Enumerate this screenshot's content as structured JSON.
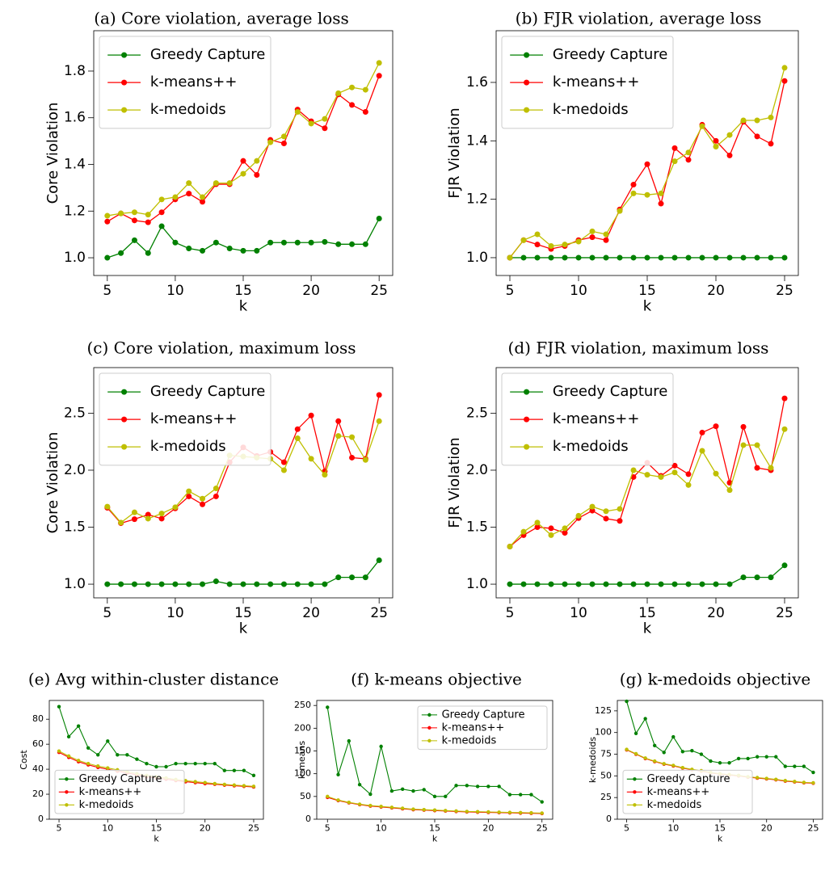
{
  "chart_data": [
    {
      "type": "line",
      "title": "(a) Core violation, average loss",
      "xlabel": "k",
      "ylabel": "Core Violation",
      "x": [
        5,
        6,
        7,
        8,
        9,
        10,
        11,
        12,
        13,
        14,
        15,
        16,
        17,
        18,
        19,
        20,
        21,
        22,
        23,
        24,
        25
      ],
      "xlim": [
        4,
        26
      ],
      "xticks": [
        5,
        10,
        15,
        20,
        25
      ],
      "ylim": [
        0.924,
        1.973
      ],
      "yticks": [
        {
          "value": 1.0,
          "label": "1.0"
        },
        1.2,
        1.4,
        1.6,
        1.8
      ],
      "legend": "upper left",
      "series": [
        {
          "name": "Greedy Capture",
          "color": "#008000",
          "values": [
            1.0,
            1.02,
            1.075,
            1.02,
            1.135,
            1.065,
            1.04,
            1.03,
            1.065,
            1.04,
            1.03,
            1.03,
            1.065,
            1.065,
            1.065,
            1.065,
            1.068,
            1.058,
            1.058,
            1.058,
            1.168
          ]
        },
        {
          "name": "k-means++",
          "color": "#ff0000",
          "values": [
            1.155,
            1.19,
            1.16,
            1.152,
            1.195,
            1.25,
            1.275,
            1.24,
            1.315,
            1.315,
            1.415,
            1.355,
            1.505,
            1.49,
            1.635,
            1.585,
            1.555,
            1.7,
            1.655,
            1.625,
            1.78
          ]
        },
        {
          "name": "k-medoids",
          "color": "#bfbf00",
          "values": [
            1.18,
            1.19,
            1.195,
            1.185,
            1.25,
            1.26,
            1.32,
            1.26,
            1.32,
            1.32,
            1.36,
            1.415,
            1.495,
            1.52,
            1.625,
            1.575,
            1.595,
            1.705,
            1.73,
            1.72,
            1.835
          ]
        }
      ]
    },
    {
      "type": "line",
      "title": "(b) FJR violation, average loss",
      "xlabel": "k",
      "ylabel": "FJR Violation",
      "x": [
        5,
        6,
        7,
        8,
        9,
        10,
        11,
        12,
        13,
        14,
        15,
        16,
        17,
        18,
        19,
        20,
        21,
        22,
        23,
        24,
        25
      ],
      "xlim": [
        4,
        26
      ],
      "xticks": [
        5,
        10,
        15,
        20,
        25
      ],
      "ylim": [
        0.939,
        1.777
      ],
      "yticks": [
        {
          "value": 1.0,
          "label": "1.0"
        },
        1.2,
        1.4,
        1.6
      ],
      "legend": "upper left",
      "series": [
        {
          "name": "Greedy Capture",
          "color": "#008000",
          "values": [
            1.0,
            1.0,
            1.0,
            1.0,
            1.0,
            1.0,
            1.0,
            1.0,
            1.0,
            1.0,
            1.0,
            1.0,
            1.0,
            1.0,
            1.0,
            1.0,
            1.0,
            1.0,
            1.0,
            1.0,
            1.0
          ]
        },
        {
          "name": "k-means++",
          "color": "#ff0000",
          "values": [
            1.0,
            1.06,
            1.045,
            1.03,
            1.04,
            1.06,
            1.07,
            1.06,
            1.165,
            1.25,
            1.32,
            1.185,
            1.375,
            1.335,
            1.455,
            1.4,
            1.35,
            1.465,
            1.415,
            1.39,
            1.605
          ]
        },
        {
          "name": "k-medoids",
          "color": "#bfbf00",
          "values": [
            1.0,
            1.06,
            1.08,
            1.04,
            1.045,
            1.055,
            1.09,
            1.08,
            1.16,
            1.22,
            1.215,
            1.22,
            1.33,
            1.36,
            1.45,
            1.38,
            1.42,
            1.47,
            1.47,
            1.48,
            1.65
          ]
        }
      ]
    },
    {
      "type": "line",
      "title": "(c) Core violation, maximum loss",
      "xlabel": "k",
      "ylabel": "Core Violation",
      "x": [
        5,
        6,
        7,
        8,
        9,
        10,
        11,
        12,
        13,
        14,
        15,
        16,
        17,
        18,
        19,
        20,
        21,
        22,
        23,
        24,
        25
      ],
      "xlim": [
        4,
        26
      ],
      "xticks": [
        5,
        10,
        15,
        20,
        25
      ],
      "ylim": [
        0.88,
        2.9
      ],
      "yticks": [
        {
          "value": 1.0,
          "label": "1.0"
        },
        1.5,
        {
          "value": 2.0,
          "label": "2.0"
        },
        2.5
      ],
      "legend": "upper left",
      "series": [
        {
          "name": "Greedy Capture",
          "color": "#008000",
          "values": [
            1.0,
            1.0,
            1.0,
            1.0,
            1.0,
            1.0,
            1.0,
            1.0,
            1.025,
            1.0,
            1.0,
            1.0,
            1.0,
            1.0,
            1.0,
            1.0,
            1.0,
            1.06,
            1.06,
            1.06,
            1.21
          ]
        },
        {
          "name": "k-means++",
          "color": "#ff0000",
          "values": [
            1.67,
            1.535,
            1.57,
            1.61,
            1.575,
            1.665,
            1.77,
            1.7,
            1.77,
            2.07,
            2.2,
            2.125,
            2.16,
            2.07,
            2.36,
            2.48,
            1.99,
            2.43,
            2.11,
            2.1,
            2.66
          ]
        },
        {
          "name": "k-medoids",
          "color": "#bfbf00",
          "values": [
            1.68,
            1.54,
            1.63,
            1.575,
            1.62,
            1.675,
            1.815,
            1.75,
            1.84,
            2.13,
            2.12,
            2.11,
            2.1,
            2.0,
            2.28,
            2.1,
            1.96,
            2.3,
            2.29,
            2.09,
            2.43
          ]
        }
      ]
    },
    {
      "type": "line",
      "title": "(d) FJR violation, maximum loss",
      "xlabel": "k",
      "ylabel": "FJR Violation",
      "x": [
        5,
        6,
        7,
        8,
        9,
        10,
        11,
        12,
        13,
        14,
        15,
        16,
        17,
        18,
        19,
        20,
        21,
        22,
        23,
        24,
        25
      ],
      "xlim": [
        4,
        26
      ],
      "xticks": [
        5,
        10,
        15,
        20,
        25
      ],
      "ylim": [
        0.88,
        2.9
      ],
      "yticks": [
        {
          "value": 1.0,
          "label": "1.0"
        },
        1.5,
        {
          "value": 2.0,
          "label": "2.0"
        },
        2.5
      ],
      "legend": "upper left",
      "series": [
        {
          "name": "Greedy Capture",
          "color": "#008000",
          "values": [
            1.0,
            1.0,
            1.0,
            1.0,
            1.0,
            1.0,
            1.0,
            1.0,
            1.0,
            1.0,
            1.0,
            1.0,
            1.0,
            1.0,
            1.0,
            1.0,
            1.0,
            1.06,
            1.06,
            1.06,
            1.165
          ]
        },
        {
          "name": "k-means++",
          "color": "#ff0000",
          "values": [
            1.33,
            1.43,
            1.5,
            1.49,
            1.45,
            1.58,
            1.645,
            1.575,
            1.555,
            1.94,
            2.065,
            1.95,
            2.04,
            1.965,
            2.33,
            2.385,
            1.89,
            2.38,
            2.02,
            2.0,
            2.63
          ]
        },
        {
          "name": "k-medoids",
          "color": "#bfbf00",
          "values": [
            1.33,
            1.46,
            1.54,
            1.43,
            1.49,
            1.6,
            1.68,
            1.64,
            1.66,
            2.0,
            1.96,
            1.94,
            1.98,
            1.87,
            2.17,
            1.97,
            1.825,
            2.22,
            2.22,
            2.02,
            2.36
          ]
        }
      ]
    },
    {
      "type": "line",
      "title": "(e) Avg within-cluster distance",
      "xlabel": "k",
      "ylabel": "Cost",
      "x": [
        5,
        6,
        7,
        8,
        9,
        10,
        11,
        12,
        13,
        14,
        15,
        16,
        17,
        18,
        19,
        20,
        21,
        22,
        23,
        24,
        25
      ],
      "xlim": [
        4,
        26
      ],
      "xticks": [
        5,
        10,
        15,
        20,
        25
      ],
      "ylim": [
        0,
        95
      ],
      "yticks": [
        0,
        20,
        40,
        60,
        80
      ],
      "legend": "lower left",
      "series": [
        {
          "name": "Greedy Capture",
          "color": "#008000",
          "values": [
            90,
            66,
            74.5,
            57,
            51.5,
            62.5,
            51.5,
            51.5,
            48,
            44.5,
            42,
            42,
            44.5,
            44.5,
            44.5,
            44.5,
            44.5,
            39,
            39,
            39,
            35
          ]
        },
        {
          "name": "k-means++",
          "color": "#ff0000",
          "values": [
            53.5,
            49.5,
            46,
            43.5,
            41.5,
            40,
            38.5,
            37,
            35.5,
            34,
            33,
            32,
            31,
            30,
            29.3,
            28.5,
            28,
            27.3,
            26.8,
            26.3,
            25.8
          ]
        },
        {
          "name": "k-medoids",
          "color": "#bfbf00",
          "values": [
            54.5,
            50.5,
            47,
            44.5,
            42.5,
            41,
            39.5,
            38,
            36.5,
            35,
            34,
            33,
            31.8,
            30.8,
            30,
            29.3,
            28.5,
            27.8,
            27.3,
            26.8,
            26.3
          ]
        }
      ]
    },
    {
      "type": "line",
      "title": "(f) k-means objective",
      "xlabel": "k",
      "ylabel": "k-means",
      "x": [
        5,
        6,
        7,
        8,
        9,
        10,
        11,
        12,
        13,
        14,
        15,
        16,
        17,
        18,
        19,
        20,
        21,
        22,
        23,
        24,
        25
      ],
      "xlim": [
        4,
        26
      ],
      "xticks": [
        5,
        10,
        15,
        20,
        25
      ],
      "ylim": [
        0,
        261
      ],
      "yticks": [
        0,
        50,
        100,
        150,
        200,
        250
      ],
      "legend": "upper right",
      "series": [
        {
          "name": "Greedy Capture",
          "color": "#008000",
          "values": [
            246,
            98,
            172,
            76,
            55,
            160,
            62,
            66,
            62,
            65,
            50,
            50,
            74,
            74,
            72,
            72,
            72,
            54,
            54,
            54,
            38
          ]
        },
        {
          "name": "k-means++",
          "color": "#ff0000",
          "values": [
            48,
            41,
            36,
            32,
            29,
            27,
            25,
            23,
            21,
            20,
            19,
            18,
            17,
            16,
            15.5,
            15,
            14.5,
            14,
            13.5,
            13,
            12.5
          ]
        },
        {
          "name": "k-medoids",
          "color": "#bfbf00",
          "values": [
            50,
            42,
            37,
            33,
            30,
            28,
            26,
            24,
            22,
            21,
            20,
            19,
            18,
            17,
            16.5,
            16,
            15.5,
            15,
            14.5,
            14,
            13.5
          ]
        }
      ]
    },
    {
      "type": "line",
      "title": "(g) k-medoids objective",
      "xlabel": "k",
      "ylabel": "k-medoids",
      "x": [
        5,
        6,
        7,
        8,
        9,
        10,
        11,
        12,
        13,
        14,
        15,
        16,
        17,
        18,
        19,
        20,
        21,
        22,
        23,
        24,
        25
      ],
      "xlim": [
        4,
        26
      ],
      "xticks": [
        5,
        10,
        15,
        20,
        25
      ],
      "ylim": [
        0,
        137
      ],
      "yticks": [
        0,
        25,
        50,
        75,
        100,
        125
      ],
      "legend": "lower left",
      "series": [
        {
          "name": "Greedy Capture",
          "color": "#008000",
          "values": [
            136,
            99,
            116,
            85,
            77,
            95,
            78,
            79,
            75,
            67,
            65,
            65,
            70,
            70,
            72,
            72,
            72,
            61,
            61,
            61,
            54
          ]
        },
        {
          "name": "k-means++",
          "color": "#ff0000",
          "values": [
            80,
            75,
            70,
            66.5,
            63.5,
            61.5,
            59,
            57,
            55.5,
            53.5,
            52,
            51,
            50,
            48.5,
            47.5,
            46.5,
            45.5,
            44,
            43,
            42,
            41.5
          ]
        },
        {
          "name": "k-medoids",
          "color": "#bfbf00",
          "values": [
            80.5,
            75.5,
            70.5,
            67,
            64,
            62,
            59.5,
            57.5,
            56,
            54,
            52.5,
            51.5,
            50.5,
            49,
            48,
            47,
            46,
            44.5,
            43.5,
            42.5,
            42
          ]
        }
      ]
    }
  ]
}
